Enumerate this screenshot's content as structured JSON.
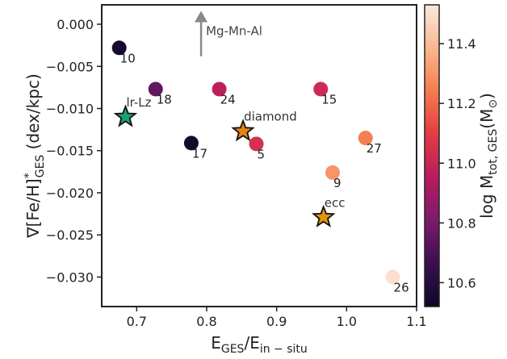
{
  "chart_data": {
    "type": "scatter",
    "xlabel": {
      "main": "E",
      "sub1": "GES",
      "mid": "/E",
      "sub2": "in − situ"
    },
    "ylabel": {
      "main": "∇[Fe/H]",
      "sup": "*",
      "sub": "GES",
      "tail": " (dex/kpc)"
    },
    "xlim": [
      0.65,
      1.1
    ],
    "ylim": [
      -0.0335,
      0.0023
    ],
    "xticks": [
      0.7,
      0.8,
      0.9,
      1.0,
      1.1
    ],
    "xtick_labels": [
      "0.7",
      "0.8",
      "0.9",
      "1.0",
      "1.1"
    ],
    "yticks": [
      0.0,
      -0.005,
      -0.01,
      -0.015,
      -0.02,
      -0.025,
      -0.03
    ],
    "ytick_labels": [
      "0.000",
      "−0.005",
      "−0.010",
      "−0.015",
      "−0.020",
      "−0.025",
      "−0.030"
    ],
    "grid": false,
    "colorbar": {
      "label": {
        "main": "log M",
        "sub": "tot, GES",
        "tail": "(M",
        "sun": "⊙",
        "close": ")"
      },
      "range": [
        10.52,
        11.53
      ],
      "ticks": [
        10.6,
        10.8,
        11.0,
        11.2,
        11.4
      ],
      "tick_labels": [
        "10.6",
        "10.8",
        "11.0",
        "11.2",
        "11.4"
      ],
      "cmap_stops": [
        "#0b0924",
        "#3b0f4f",
        "#7c1a6c",
        "#b71c5e",
        "#e33c44",
        "#f47c4e",
        "#fbb78f",
        "#fce9dc"
      ]
    },
    "points": [
      {
        "label": "10",
        "x": 0.675,
        "y": -0.0028,
        "logm": 10.55
      },
      {
        "label": "18",
        "x": 0.727,
        "y": -0.0077,
        "logm": 10.75
      },
      {
        "label": "24",
        "x": 0.818,
        "y": -0.0077,
        "logm": 10.97
      },
      {
        "label": "15",
        "x": 0.963,
        "y": -0.0077,
        "logm": 11.02
      },
      {
        "label": "17",
        "x": 0.778,
        "y": -0.0141,
        "logm": 10.55
      },
      {
        "label": "5",
        "x": 0.871,
        "y": -0.0142,
        "logm": 11.05
      },
      {
        "label": "27",
        "x": 1.027,
        "y": -0.0135,
        "logm": 11.25
      },
      {
        "label": "9",
        "x": 0.98,
        "y": -0.0176,
        "logm": 11.3
      },
      {
        "label": "26",
        "x": 1.066,
        "y": -0.03,
        "logm": 11.5
      }
    ],
    "stars": [
      {
        "label": "lr-Lz",
        "x": 0.684,
        "y": -0.011,
        "color": "#1a9e75"
      },
      {
        "label": "diamond",
        "x": 0.852,
        "y": -0.0127,
        "color": "#e38416"
      },
      {
        "label": "ecc",
        "x": 0.967,
        "y": -0.0229,
        "color": "#e5920f"
      }
    ],
    "arrow": {
      "label": "Mg-Mn-Al",
      "x": 0.792,
      "y_from": -0.0038,
      "y_to": 0.0012
    }
  }
}
